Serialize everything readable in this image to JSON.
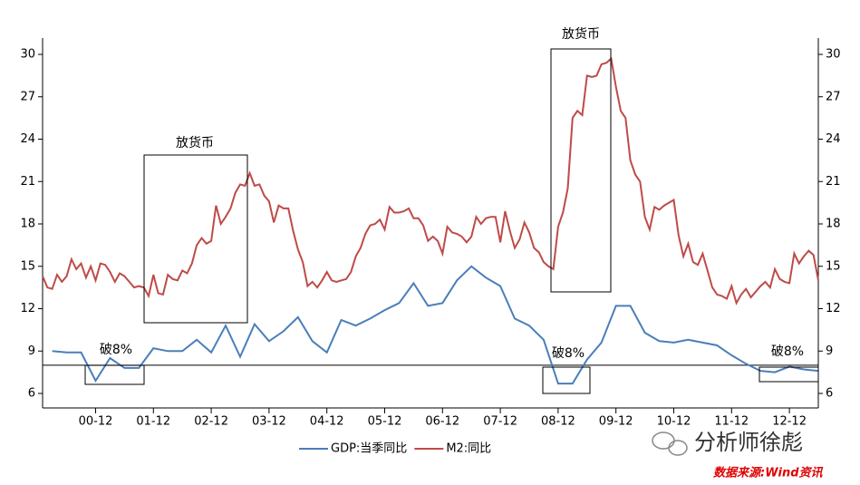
{
  "chart_data": {
    "type": "line",
    "xlim": [
      "00-01",
      "13-06"
    ],
    "xticks": [
      "00-12",
      "01-12",
      "02-12",
      "03-12",
      "04-12",
      "05-12",
      "06-12",
      "07-12",
      "08-12",
      "09-12",
      "10-12",
      "11-12",
      "12-12"
    ],
    "ylim": [
      6,
      30
    ],
    "yticks": [
      6,
      9,
      12,
      15,
      18,
      21,
      24,
      27,
      30
    ],
    "y2lim": [
      6,
      30
    ],
    "y2ticks": [
      6,
      9,
      12,
      15,
      18,
      21,
      24,
      27,
      30
    ],
    "reference_line": 8,
    "annotations": [
      "放货币",
      "放货币",
      "破8%",
      "破8%",
      "破8%"
    ],
    "source": "数据来源:Wind资讯",
    "watermark": "分析师徐彪",
    "series": [
      {
        "name": "GDP:当季同比",
        "color": "#4a7ebb",
        "x": [
          "00-03",
          "00-06",
          "00-09",
          "00-12",
          "01-03",
          "01-06",
          "01-09",
          "01-12",
          "02-03",
          "02-06",
          "02-09",
          "02-12",
          "03-03",
          "03-06",
          "03-09",
          "03-12",
          "04-03",
          "04-06",
          "04-09",
          "04-12",
          "05-03",
          "05-06",
          "05-09",
          "05-12",
          "06-03",
          "06-06",
          "06-09",
          "06-12",
          "07-03",
          "07-06",
          "07-09",
          "07-12",
          "08-03",
          "08-06",
          "08-09",
          "08-12",
          "09-03",
          "09-06",
          "09-09",
          "09-12",
          "10-03",
          "10-06",
          "10-09",
          "10-12",
          "11-03",
          "11-06",
          "11-09",
          "11-12",
          "12-03",
          "12-06",
          "12-09",
          "12-12",
          "13-03",
          "13-06"
        ],
        "values": [
          9.0,
          8.9,
          8.9,
          6.9,
          8.5,
          7.8,
          7.8,
          9.2,
          9.0,
          9.0,
          9.8,
          8.9,
          10.8,
          8.6,
          10.9,
          9.7,
          10.4,
          11.4,
          9.7,
          8.9,
          11.2,
          10.8,
          11.3,
          11.9,
          12.4,
          13.8,
          12.2,
          12.4,
          14.0,
          15.0,
          14.2,
          13.6,
          11.3,
          10.8,
          9.8,
          6.7,
          6.7,
          8.4,
          9.6,
          12.2,
          12.2,
          10.3,
          9.7,
          9.6,
          9.8,
          9.6,
          9.4,
          8.7,
          8.1,
          7.6,
          7.5,
          7.9,
          7.7,
          7.6
        ]
      },
      {
        "name": "M2:同比",
        "color": "#be4b48",
        "x": [
          "00-01",
          "00-02",
          "00-03",
          "00-04",
          "00-05",
          "00-06",
          "00-07",
          "00-08",
          "00-09",
          "00-10",
          "00-11",
          "00-12",
          "01-01",
          "01-02",
          "01-03",
          "01-04",
          "01-05",
          "01-06",
          "01-07",
          "01-08",
          "01-09",
          "01-10",
          "01-11",
          "01-12",
          "02-01",
          "02-02",
          "02-03",
          "02-04",
          "02-05",
          "02-06",
          "02-07",
          "02-08",
          "02-09",
          "02-10",
          "02-11",
          "02-12",
          "03-01",
          "03-02",
          "03-03",
          "03-04",
          "03-05",
          "03-06",
          "03-07",
          "03-08",
          "03-09",
          "03-10",
          "03-11",
          "03-12",
          "04-01",
          "04-02",
          "04-03",
          "04-04",
          "04-05",
          "04-06",
          "04-07",
          "04-08",
          "04-09",
          "04-10",
          "04-11",
          "04-12",
          "05-01",
          "05-02",
          "05-03",
          "05-04",
          "05-05",
          "05-06",
          "05-07",
          "05-08",
          "05-09",
          "05-10",
          "05-11",
          "05-12",
          "06-01",
          "06-02",
          "06-03",
          "06-04",
          "06-05",
          "06-06",
          "06-07",
          "06-08",
          "06-09",
          "06-10",
          "06-11",
          "06-12",
          "07-01",
          "07-02",
          "07-03",
          "07-04",
          "07-05",
          "07-06",
          "07-07",
          "07-08",
          "07-09",
          "07-10",
          "07-11",
          "07-12",
          "08-01",
          "08-02",
          "08-03",
          "08-04",
          "08-05",
          "08-06",
          "08-07",
          "08-08",
          "08-09",
          "08-10",
          "08-11",
          "08-12",
          "09-01",
          "09-02",
          "09-03",
          "09-04",
          "09-05",
          "09-06",
          "09-07",
          "09-08",
          "09-09",
          "09-10",
          "09-11",
          "09-12",
          "10-01",
          "10-02",
          "10-03",
          "10-04",
          "10-05",
          "10-06",
          "10-07",
          "10-08",
          "10-09",
          "10-10",
          "10-11",
          "10-12",
          "11-01",
          "11-02",
          "11-03",
          "11-04",
          "11-05",
          "11-06",
          "11-07",
          "11-08",
          "11-09",
          "11-10",
          "11-11",
          "11-12",
          "12-01",
          "12-02",
          "12-03",
          "12-04",
          "12-05",
          "12-06",
          "12-07",
          "12-08",
          "12-09",
          "12-10",
          "12-11",
          "12-12",
          "13-01",
          "13-02",
          "13-03",
          "13-04",
          "13-05",
          "13-06"
        ],
        "values": [
          14.3,
          13.5,
          13.4,
          14.4,
          13.9,
          14.3,
          15.5,
          14.8,
          15.2,
          14.2,
          15.0,
          14.0,
          15.2,
          15.1,
          14.6,
          13.9,
          14.5,
          14.3,
          13.9,
          13.5,
          13.6,
          13.5,
          12.9,
          14.4,
          13.1,
          13.0,
          14.4,
          14.1,
          14.0,
          14.7,
          14.5,
          15.2,
          16.5,
          17.0,
          16.6,
          16.8,
          19.3,
          18.0,
          18.5,
          19.1,
          20.2,
          20.8,
          20.7,
          21.6,
          20.7,
          20.8,
          20.0,
          19.6,
          18.1,
          19.3,
          19.1,
          19.1,
          17.5,
          16.2,
          15.3,
          13.6,
          13.9,
          13.5,
          14.0,
          14.6,
          14.0,
          13.9,
          14.0,
          14.1,
          14.6,
          15.7,
          16.3,
          17.3,
          17.9,
          18.0,
          18.3,
          17.6,
          19.2,
          18.8,
          18.8,
          18.9,
          19.1,
          18.4,
          18.4,
          17.9,
          16.8,
          17.1,
          16.8,
          15.9,
          17.8,
          17.4,
          17.3,
          17.1,
          16.7,
          17.1,
          18.5,
          18.0,
          18.4,
          18.5,
          18.5,
          16.7,
          18.9,
          17.5,
          16.3,
          16.9,
          18.1,
          17.4,
          16.3,
          16.0,
          15.3,
          15.0,
          14.8,
          17.8,
          18.8,
          20.5,
          25.5,
          26.0,
          25.7,
          28.5,
          28.4,
          28.5,
          29.3,
          29.4,
          29.7,
          27.7,
          26.0,
          25.5,
          22.5,
          21.5,
          21.0,
          18.5,
          17.6,
          19.2,
          19.0,
          19.3,
          19.5,
          19.7,
          17.2,
          15.7,
          16.6,
          15.3,
          15.1,
          15.9,
          14.7,
          13.5,
          13.0,
          12.9,
          12.7,
          13.6,
          12.4,
          13.0,
          13.4,
          12.8,
          13.2,
          13.6,
          13.9,
          13.5,
          14.8,
          14.1,
          13.9,
          13.8,
          15.9,
          15.2,
          15.7,
          16.1,
          15.8,
          14.0
        ]
      }
    ]
  }
}
